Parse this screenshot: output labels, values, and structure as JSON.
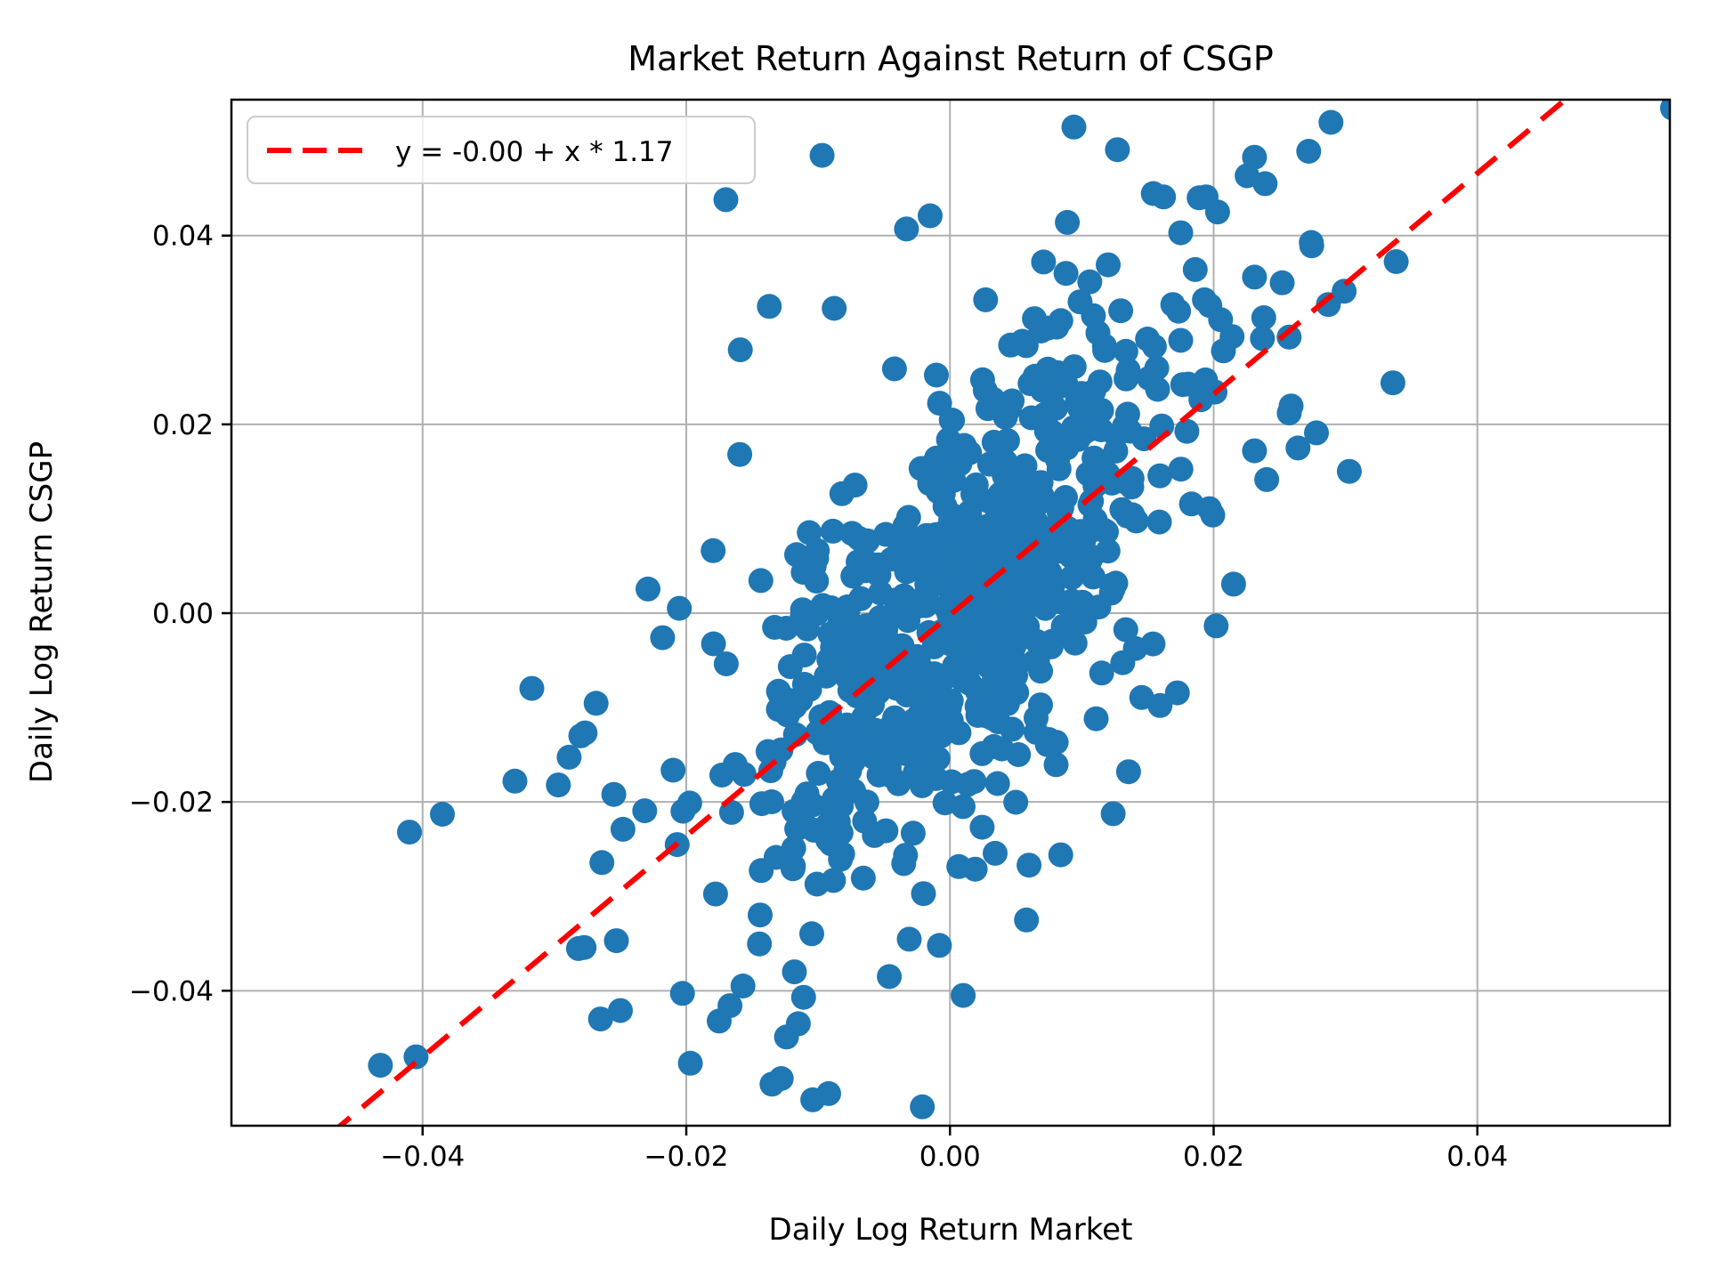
{
  "figure": {
    "title": "Market Return Against Return of CSGP",
    "xlabel": "Daily Log Return Market",
    "ylabel": "Daily Log Return CSGP",
    "legend_label": "y = -0.00 + x * 1.17"
  },
  "colors": {
    "marker": "#1f77b4",
    "regression": "#ff0000",
    "grid": "#b0b0b0",
    "spine": "#000000",
    "legend_border": "#cccccc",
    "background": "#ffffff"
  },
  "chart_data": {
    "type": "scatter",
    "title": "Market Return Against Return of CSGP",
    "xlabel": "Daily Log Return Market",
    "ylabel": "Daily Log Return CSGP",
    "xlim": [
      -0.0545,
      0.0546
    ],
    "ylim": [
      -0.0543,
      0.0544
    ],
    "x_ticks": [
      -0.04,
      -0.02,
      0.0,
      0.02,
      0.04
    ],
    "y_ticks": [
      -0.04,
      -0.02,
      0.0,
      0.02,
      0.04
    ],
    "grid": true,
    "legend_position": "upper left",
    "regression_line": {
      "label": "y = -0.00 + x * 1.17",
      "intercept": -0.0002,
      "slope": 1.17,
      "style": "dashed"
    },
    "marker": {
      "radius_px": 14
    },
    "points_outliers": [
      [
        -0.0097,
        0.0485
      ],
      [
        -0.0033,
        0.0407
      ],
      [
        -0.0137,
        0.0325
      ],
      [
        -0.0159,
        0.0279
      ],
      [
        -0.017,
        0.0438
      ],
      [
        -0.0015,
        0.0421
      ],
      [
        0.0094,
        0.0515
      ],
      [
        0.0127,
        0.0491
      ],
      [
        0.0289,
        0.052
      ],
      [
        0.0231,
        0.0483
      ],
      [
        0.0239,
        0.0455
      ],
      [
        0.0162,
        0.0441
      ],
      [
        0.0189,
        0.044
      ],
      [
        0.0203,
        0.0425
      ],
      [
        0.0089,
        0.0414
      ],
      [
        0.0175,
        0.0403
      ],
      [
        0.0071,
        0.0372
      ],
      [
        0.0088,
        0.036
      ],
      [
        0.0106,
        0.0351
      ],
      [
        0.012,
        0.0369
      ],
      [
        0.0186,
        0.0364
      ],
      [
        0.0027,
        0.0332
      ],
      [
        0.0064,
        0.0312
      ],
      [
        0.0081,
        0.0303
      ],
      [
        0.0169,
        0.0327
      ],
      [
        0.0193,
        0.0332
      ],
      [
        0.0231,
        0.0356
      ],
      [
        0.0252,
        0.035
      ],
      [
        0.0238,
        0.0313
      ],
      [
        0.0237,
        0.0291
      ],
      [
        0.0287,
        0.0327
      ],
      [
        0.0299,
        0.0341
      ],
      [
        0.0214,
        0.0293
      ],
      [
        0.0175,
        0.0289
      ],
      [
        0.0548,
        0.0535
      ],
      [
        0.0336,
        0.0244
      ],
      [
        0.0278,
        0.0191
      ],
      [
        0.0264,
        0.0175
      ],
      [
        0.0231,
        0.0172
      ],
      [
        -0.0218,
        -0.0026
      ],
      [
        -0.028,
        -0.013
      ],
      [
        -0.033,
        -0.0178
      ],
      [
        -0.0297,
        -0.0182
      ],
      [
        -0.0255,
        -0.0192
      ],
      [
        -0.0385,
        -0.0213
      ],
      [
        -0.041,
        -0.0232
      ],
      [
        -0.0248,
        -0.0229
      ],
      [
        -0.0265,
        -0.043
      ],
      [
        -0.025,
        -0.0421
      ],
      [
        -0.0253,
        -0.0347
      ],
      [
        -0.0432,
        -0.0479
      ],
      [
        -0.0405,
        -0.047
      ],
      [
        -0.0021,
        -0.0523
      ],
      [
        -0.0092,
        -0.0509
      ],
      [
        -0.0128,
        -0.0493
      ],
      [
        -0.0135,
        -0.0499
      ],
      [
        -0.0115,
        -0.0435
      ],
      [
        -0.0124,
        -0.0449
      ],
      [
        0.001,
        -0.0405
      ],
      [
        -0.0046,
        -0.0385
      ],
      [
        -0.0157,
        -0.0395
      ],
      [
        -0.0118,
        -0.038
      ],
      [
        -0.0111,
        -0.0407
      ],
      [
        -0.0008,
        -0.0352
      ],
      [
        0.0058,
        -0.0325
      ],
      [
        0.006,
        -0.0267
      ],
      [
        0.0084,
        -0.0256
      ]
    ],
    "points_cloud": {
      "count": 690,
      "seed": 1337,
      "x_mean": 0.0008,
      "x_std": 0.0075,
      "resid_std": 0.0095,
      "tail_frac": 0.18,
      "tail_mult": 1.9
    }
  }
}
